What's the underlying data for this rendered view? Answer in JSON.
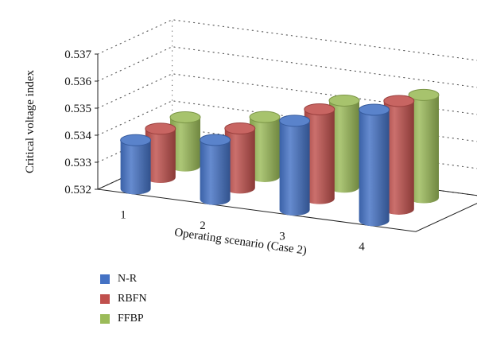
{
  "chart_data": {
    "type": "bar",
    "title": "",
    "xlabel": "Operating scenario (Case 2)",
    "ylabel": "Critical voltage index",
    "ylim": [
      0.532,
      0.537
    ],
    "yticks": [
      "0.532",
      "0.533",
      "0.534",
      "0.535",
      "0.536",
      "0.537"
    ],
    "categories": [
      "1",
      "2",
      "3",
      "4"
    ],
    "grid": true,
    "legend_position": "bottom-left",
    "series": [
      {
        "name": "N-R",
        "color": "#4472C4",
        "values": [
          0.5338,
          0.5342,
          0.5353,
          0.5361
        ]
      },
      {
        "name": "RBFN",
        "color": "#C0504D",
        "values": [
          0.5338,
          0.5342,
          0.5353,
          0.536
        ]
      },
      {
        "name": "FFBP",
        "color": "#9BBB59",
        "values": [
          0.5338,
          0.5342,
          0.5352,
          0.5358
        ]
      }
    ]
  }
}
